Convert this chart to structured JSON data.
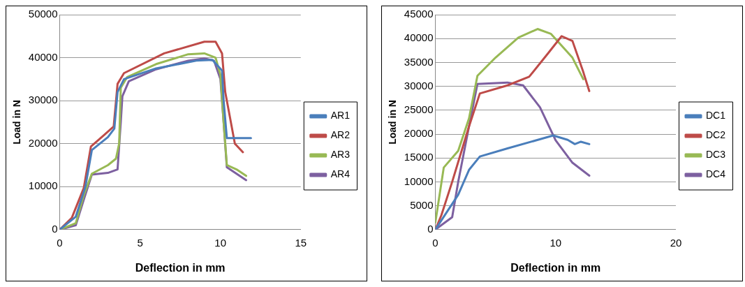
{
  "chart_data": [
    {
      "type": "line",
      "xlabel": "Deflection in mm",
      "ylabel": "Load in N",
      "xlim": [
        0,
        15
      ],
      "xticks": [
        0,
        5,
        10,
        15
      ],
      "ylim": [
        0,
        50000
      ],
      "yticks": [
        0,
        10000,
        20000,
        30000,
        40000,
        50000
      ],
      "grid": "y",
      "legend": "right",
      "marker": "none",
      "line_style": "solid",
      "series": [
        {
          "name": "AR1",
          "color": "#4a7ebb",
          "x": [
            0,
            1,
            1.6,
            2,
            3,
            3.4,
            3.6,
            4,
            6,
            8.5,
            9.5,
            10.1,
            10.2,
            10.4,
            11.9
          ],
          "values": [
            0,
            3000,
            10000,
            18500,
            21500,
            23500,
            32000,
            35000,
            37500,
            39300,
            39500,
            37000,
            30000,
            21300,
            21300
          ]
        },
        {
          "name": "AR2",
          "color": "#be4b48",
          "x": [
            0,
            0.75,
            1.5,
            1.94,
            2.7,
            3.36,
            3.6,
            4,
            6.5,
            9,
            9.7,
            10.1,
            10.3,
            10.9,
            11.4
          ],
          "values": [
            0,
            2700,
            9700,
            19300,
            21800,
            24000,
            33900,
            36400,
            41000,
            43700,
            43700,
            41000,
            32000,
            20000,
            18000
          ]
        },
        {
          "name": "AR3",
          "color": "#98b954",
          "x": [
            0,
            1,
            1.5,
            2,
            3,
            3.5,
            3.7,
            3.8,
            4.2,
            6,
            8,
            9,
            9.7,
            10,
            10.2,
            10.4,
            11,
            11.6
          ],
          "values": [
            0,
            1500,
            8000,
            13000,
            15000,
            16500,
            20000,
            33000,
            35500,
            38500,
            40800,
            41000,
            40000,
            36000,
            25000,
            15000,
            14000,
            12500
          ]
        },
        {
          "name": "AR4",
          "color": "#7d60a0",
          "x": [
            0,
            1,
            1.5,
            2,
            3,
            3.6,
            3.8,
            3.9,
            4.3,
            6,
            8,
            9,
            9.6,
            10,
            10.2,
            10.4,
            11,
            11.6
          ],
          "values": [
            0,
            1000,
            7000,
            12800,
            13200,
            14000,
            25000,
            31000,
            34500,
            37300,
            39300,
            39800,
            39300,
            35000,
            25000,
            14500,
            13000,
            11500
          ]
        }
      ]
    },
    {
      "type": "line",
      "xlabel": "Deflection in mm",
      "ylabel": "Load in N",
      "xlim": [
        0,
        20
      ],
      "xticks": [
        0,
        10,
        20
      ],
      "ylim": [
        0,
        45000
      ],
      "yticks": [
        0,
        5000,
        10000,
        15000,
        20000,
        25000,
        30000,
        35000,
        40000,
        45000
      ],
      "grid": "y",
      "legend": "right",
      "marker": "none",
      "line_style": "solid",
      "series": [
        {
          "name": "DC1",
          "color": "#4a7ebb",
          "x": [
            0,
            1.9,
            2.8,
            3.7,
            6,
            9.8,
            11,
            11.6,
            12.1,
            12.8
          ],
          "values": [
            0,
            7300,
            12500,
            15300,
            17000,
            19700,
            18800,
            17900,
            18400,
            17900
          ]
        },
        {
          "name": "DC2",
          "color": "#be4b48",
          "x": [
            0,
            0.5,
            1.4,
            2.8,
            3.7,
            6,
            7.8,
            9.4,
            10.5,
            11.4,
            12.3,
            12.8
          ],
          "values": [
            0,
            3000,
            10000,
            21600,
            28500,
            30200,
            32000,
            37000,
            40500,
            39500,
            33000,
            29000
          ]
        },
        {
          "name": "DC3",
          "color": "#98b954",
          "x": [
            0,
            0.7,
            1.9,
            2.8,
            3.5,
            5,
            6.9,
            8.5,
            9.6,
            11.4,
            12.3
          ],
          "values": [
            1500,
            13000,
            16500,
            23300,
            32200,
            36000,
            40200,
            42000,
            41000,
            36000,
            31500
          ]
        },
        {
          "name": "DC4",
          "color": "#7d60a0",
          "x": [
            0,
            1.4,
            1.9,
            2.8,
            3.5,
            6,
            7.3,
            8.7,
            10,
            11.4,
            12.8
          ],
          "values": [
            0,
            2600,
            10000,
            21600,
            30500,
            30800,
            30200,
            25600,
            18700,
            14000,
            11300
          ]
        }
      ]
    }
  ]
}
